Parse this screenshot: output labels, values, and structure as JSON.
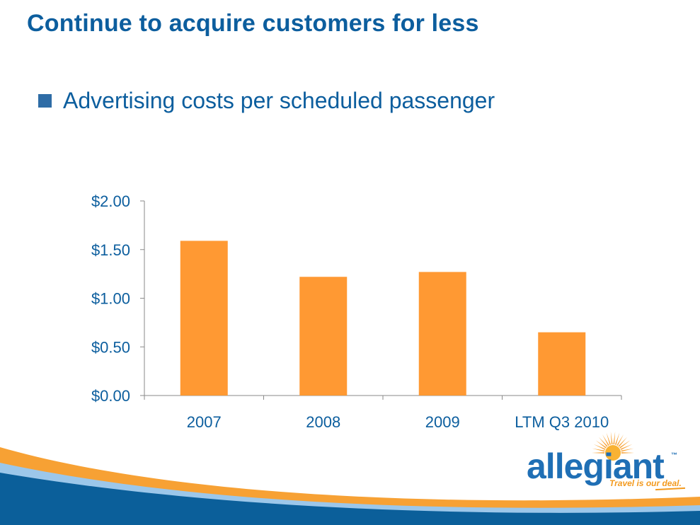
{
  "slide": {
    "title": "Continue to acquire customers for less",
    "bullet": "Advertising costs per scheduled passenger"
  },
  "chart_data": {
    "type": "bar",
    "categories": [
      "2007",
      "2008",
      "2009",
      "LTM Q3 2010"
    ],
    "values": [
      1.59,
      1.22,
      1.27,
      0.65
    ],
    "ylim": [
      0,
      2
    ],
    "yticks": [
      0,
      0.5,
      1.0,
      1.5,
      2.0
    ],
    "ytick_labels": [
      "$0.00",
      "$0.50",
      "$1.00",
      "$1.50",
      "$2.00"
    ],
    "title": "",
    "xlabel": "",
    "ylabel": "",
    "grid": false,
    "legend": "none",
    "bar_color": "#ff9933",
    "axis_color": "#8a8a8a",
    "label_color": "#0c5e9e"
  },
  "logo": {
    "wordmark": "allegiant",
    "trademark": "™",
    "tagline": "Travel is our deal.",
    "primary_color": "#1f6fb5",
    "accent_color": "#f39a1e"
  },
  "colors": {
    "title": "#0c5e9e",
    "bullet": "#2e6ca6",
    "band_blue": "#0b5f9a",
    "band_orange": "#f7a134"
  }
}
